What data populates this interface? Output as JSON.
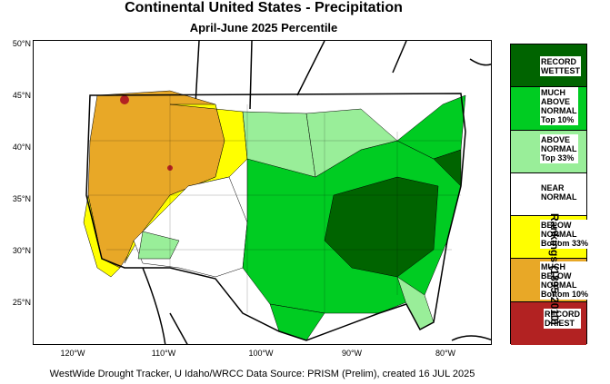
{
  "title": "Continental United States - Precipitation",
  "subtitle": "April-June 2025 Percentile",
  "latitude_ticks": [
    "50°N",
    "45°N",
    "40°N",
    "35°N",
    "30°N",
    "25°N"
  ],
  "longitude_ticks": [
    "120°W",
    "110°W",
    "100°W",
    "90°W",
    "80°W"
  ],
  "legend": {
    "title": "Rankings (1895-2010)",
    "items": [
      {
        "label": "RECORD\nWETTEST",
        "color": "#006400"
      },
      {
        "label": "MUCH\nABOVE\nNORMAL\nTop 10%",
        "color": "#00cc22"
      },
      {
        "label": "ABOVE\nNORMAL\nTop 33%",
        "color": "#99ee99"
      },
      {
        "label": "NEAR\nNORMAL",
        "color": "#ffffff"
      },
      {
        "label": "BELOW\nNORMAL\nBottom 33%",
        "color": "#ffff00"
      },
      {
        "label": "MUCH\nBELOW\nNORMAL\nBottom 10%",
        "color": "#e8a827"
      },
      {
        "label": "RECORD\nDRIEST",
        "color": "#b22222"
      }
    ]
  },
  "footer": "WestWide Drought Tracker, U Idaho/WRCC Data Source: PRISM (Prelim), created 16 JUL 2025"
}
